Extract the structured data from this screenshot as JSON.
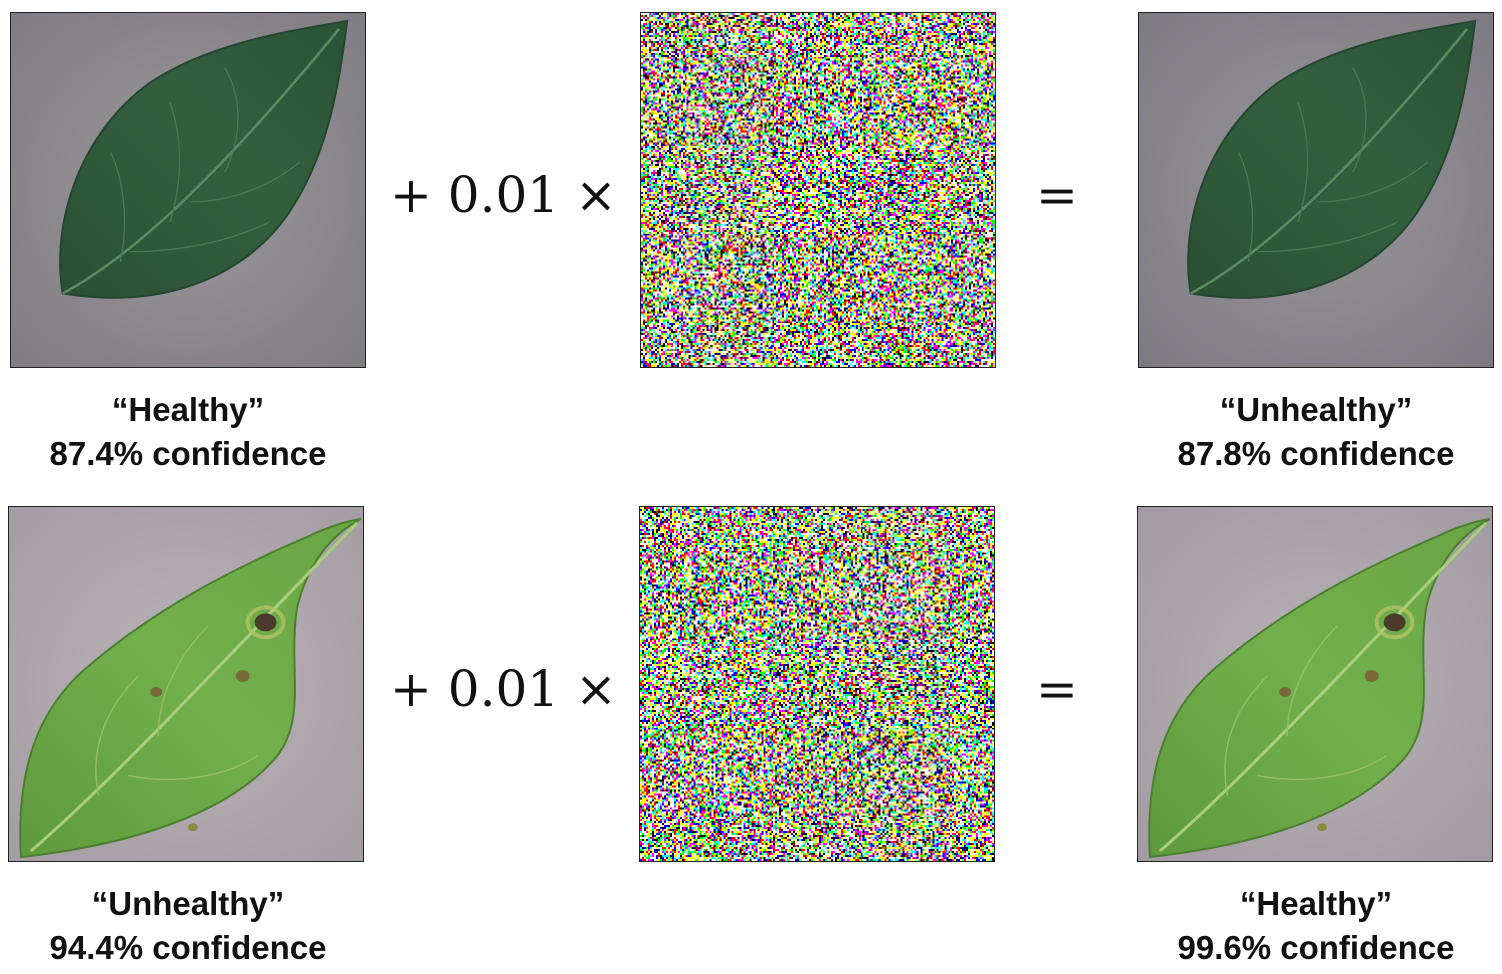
{
  "rows": [
    {
      "input": {
        "label": "“Healthy”",
        "confidence": "87.4% confidence",
        "leaf": "healthy-leaf",
        "colors": {
          "leaf": "#2f5a3a",
          "background": "#8e8a8e"
        }
      },
      "operator_plus": "+ 0.01 ×",
      "operator_equals": "=",
      "noise": {
        "seed": 7
      },
      "output": {
        "label": "“Unhealthy”",
        "confidence": "87.8% confidence"
      }
    },
    {
      "input": {
        "label": "“Unhealthy”",
        "confidence": "94.4% confidence",
        "leaf": "diseased-leaf",
        "colors": {
          "leaf": "#6aa845",
          "background": "#b2aab0"
        }
      },
      "operator_plus": "+ 0.01 ×",
      "operator_equals": "=",
      "noise": {
        "seed": 23
      },
      "output": {
        "label": "“Healthy”",
        "confidence": "99.6% confidence"
      }
    }
  ]
}
